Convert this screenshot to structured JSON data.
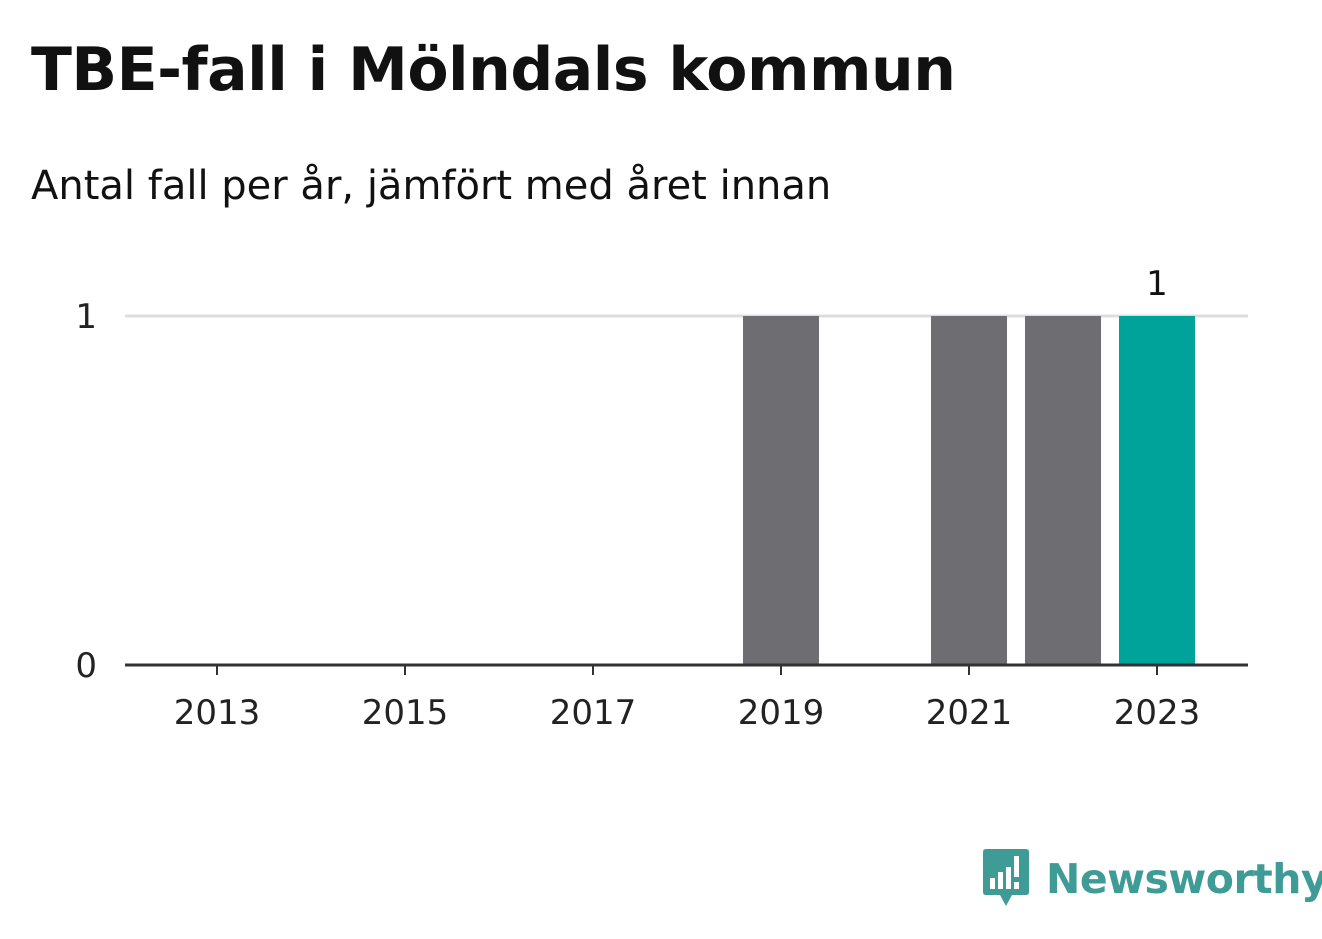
{
  "title": "TBE-fall i Mölndals kommun",
  "subtitle": "Antal fall per år, jämfört med året innan",
  "brand": {
    "name": "Newsworthy",
    "icon": "newsworthy-logo-icon",
    "color": "#3f9b96"
  },
  "colors": {
    "bar_default": "#6e6d72",
    "bar_highlight": "#00a39a",
    "grid": "#dddddd",
    "axis": "#333333"
  },
  "chart_data": {
    "type": "bar",
    "title": "TBE-fall i Mölndals kommun",
    "subtitle": "Antal fall per år, jämfört med året innan",
    "categories": [
      "2013",
      "2014",
      "2015",
      "2016",
      "2017",
      "2018",
      "2019",
      "2020",
      "2021",
      "2022",
      "2023"
    ],
    "values": [
      0,
      0,
      0,
      0,
      0,
      0,
      1,
      0,
      1,
      1,
      1
    ],
    "highlight_category": "2023",
    "x_tick_labels": [
      "2013",
      "2015",
      "2017",
      "2019",
      "2021",
      "2023"
    ],
    "y_ticks": [
      0,
      1
    ],
    "ylim": [
      0,
      1
    ],
    "xlabel": "",
    "ylabel": "",
    "grid": true,
    "legend": "none",
    "data_labels": [
      {
        "category": "2023",
        "text": "1"
      }
    ]
  }
}
